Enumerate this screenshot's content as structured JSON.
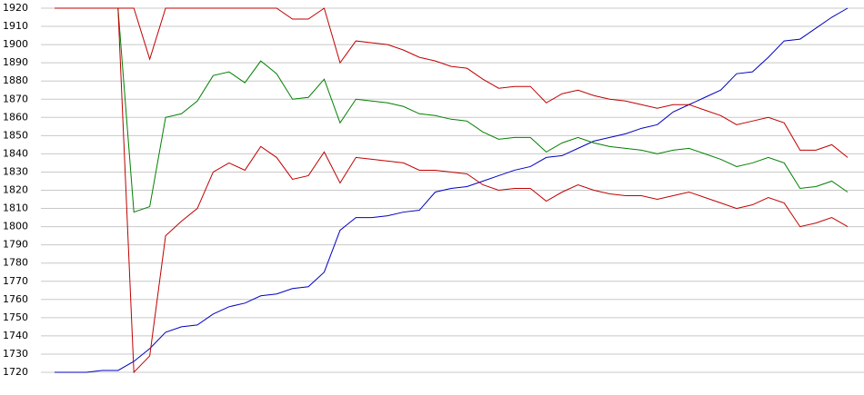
{
  "chart_data": {
    "type": "line",
    "categories": [
      null,
      null,
      null,
      null,
      null,
      null,
      null,
      null,
      null,
      null,
      null,
      null,
      null,
      null,
      null,
      null,
      null,
      null,
      null,
      null,
      null,
      null,
      null,
      null,
      null,
      null,
      null,
      null,
      null,
      null,
      null,
      null,
      null,
      null,
      null,
      null,
      null,
      null,
      null,
      null,
      null,
      null,
      null,
      null,
      null,
      null,
      null,
      null,
      null,
      null,
      null
    ],
    "series": [
      {
        "color": "#0000c0",
        "values": [
          1720,
          1720,
          1720,
          1721,
          1721,
          1726,
          1733,
          1742,
          1745,
          1746,
          1752,
          1756,
          1758,
          1762,
          1763,
          1766,
          1767,
          1775,
          1798,
          1805,
          1805,
          1806,
          1808,
          1809,
          1819,
          1821,
          1822,
          1825,
          1828,
          1831,
          1833,
          1838,
          1839,
          1843,
          1847,
          1849,
          1851,
          1854,
          1856,
          1863,
          1867,
          1871,
          1875,
          1884,
          1885,
          1893,
          1902,
          1903,
          1909,
          1915,
          1920
        ]
      },
      {
        "color": "#c00000",
        "values": [
          1920,
          1920,
          1920,
          1920,
          1920,
          1920,
          1892,
          1920,
          1920,
          1920,
          1920,
          1920,
          1920,
          1920,
          1920,
          1914,
          1914,
          1920,
          1890,
          1902,
          1901,
          1900,
          1897,
          1893,
          1891,
          1888,
          1887,
          1881,
          1876,
          1877,
          1877,
          1868,
          1873,
          1875,
          1872,
          1870,
          1869,
          1867,
          1865,
          1867,
          1867,
          1864,
          1861,
          1856,
          1858,
          1860,
          1857,
          1842,
          1842,
          1845,
          1838
        ]
      },
      {
        "color": "#008000",
        "values": [
          1920,
          1920,
          1920,
          1920,
          1920,
          1808,
          1811,
          1860,
          1862,
          1869,
          1883,
          1885,
          1879,
          1891,
          1884,
          1870,
          1871,
          1881,
          1857,
          1870,
          1869,
          1868,
          1866,
          1862,
          1861,
          1859,
          1858,
          1852,
          1848,
          1849,
          1849,
          1841,
          1846,
          1849,
          1846,
          1844,
          1843,
          1842,
          1840,
          1842,
          1843,
          1840,
          1837,
          1833,
          1835,
          1838,
          1835,
          1821,
          1822,
          1825,
          1819
        ]
      },
      {
        "color": "#c00000",
        "values": [
          1920,
          1920,
          1920,
          1920,
          1920,
          1720,
          1729,
          1795,
          1803,
          1810,
          1830,
          1835,
          1831,
          1844,
          1838,
          1826,
          1828,
          1841,
          1824,
          1838,
          1837,
          1836,
          1835,
          1831,
          1831,
          1830,
          1829,
          1823,
          1820,
          1821,
          1821,
          1814,
          1819,
          1823,
          1820,
          1818,
          1817,
          1817,
          1815,
          1817,
          1819,
          1816,
          1813,
          1810,
          1812,
          1816,
          1813,
          1800,
          1802,
          1805,
          1800
        ]
      }
    ],
    "ylim": [
      1720,
      1920
    ],
    "yticks": [
      1720,
      1730,
      1740,
      1750,
      1760,
      1770,
      1780,
      1790,
      1800,
      1810,
      1820,
      1830,
      1840,
      1850,
      1860,
      1870,
      1880,
      1890,
      1900,
      1910,
      1920
    ],
    "grid": true
  }
}
